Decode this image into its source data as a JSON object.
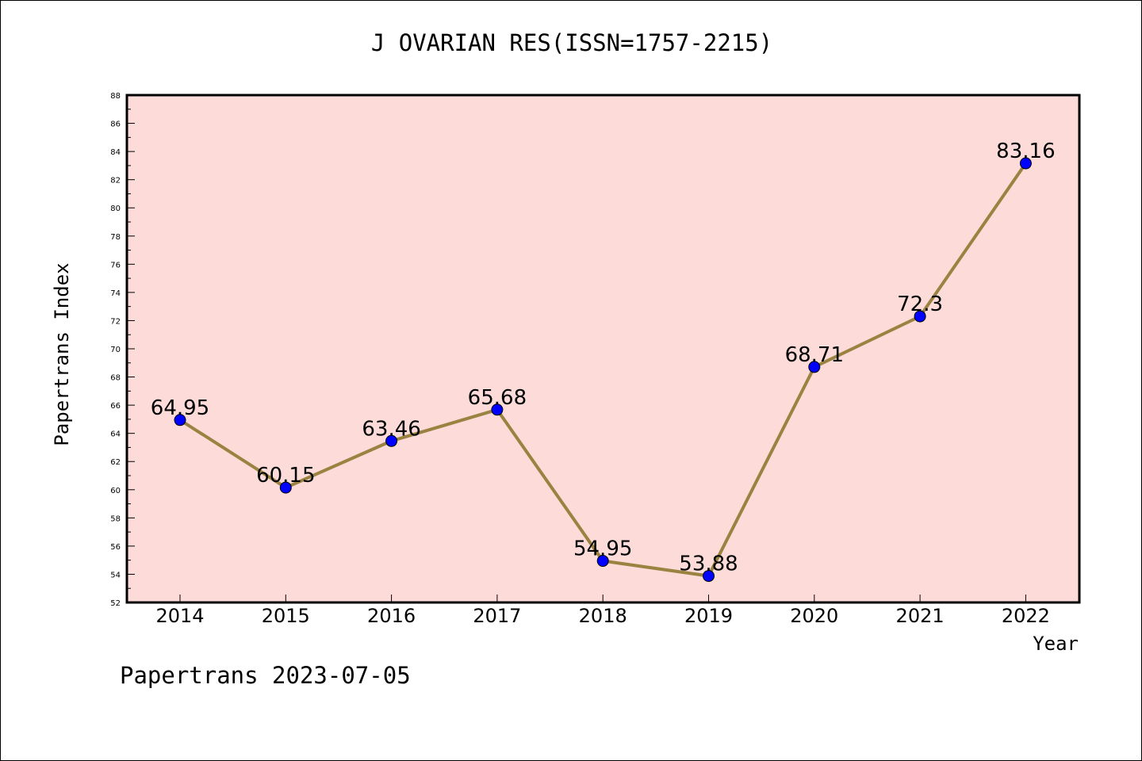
{
  "chart_data": {
    "type": "line",
    "title": "J OVARIAN RES(ISSN=1757-2215)",
    "xlabel": "Year",
    "ylabel": "Papertrans Index",
    "categories": [
      "2014",
      "2015",
      "2016",
      "2017",
      "2018",
      "2019",
      "2020",
      "2021",
      "2022"
    ],
    "series": [
      {
        "values": [
          64.95,
          60.15,
          63.46,
          65.68,
          54.95,
          53.88,
          68.71,
          72.3,
          83.16
        ],
        "labels": [
          "64.95",
          "60.15",
          "63.46",
          "65.68",
          "54.95",
          "53.88",
          "68.71",
          "72.3",
          "83.16"
        ]
      }
    ],
    "ylim": [
      52,
      88
    ],
    "yticks": [
      "52",
      "54",
      "56",
      "58",
      "60",
      "62",
      "64",
      "66",
      "68",
      "70",
      "72",
      "74",
      "76",
      "78",
      "80",
      "82",
      "84",
      "86",
      "88"
    ],
    "grid": false,
    "colors": {
      "plot_background": "#fddbd9",
      "line": "#9a8240",
      "marker": "#0000ff"
    }
  },
  "footer": "Papertrans 2023-07-05"
}
